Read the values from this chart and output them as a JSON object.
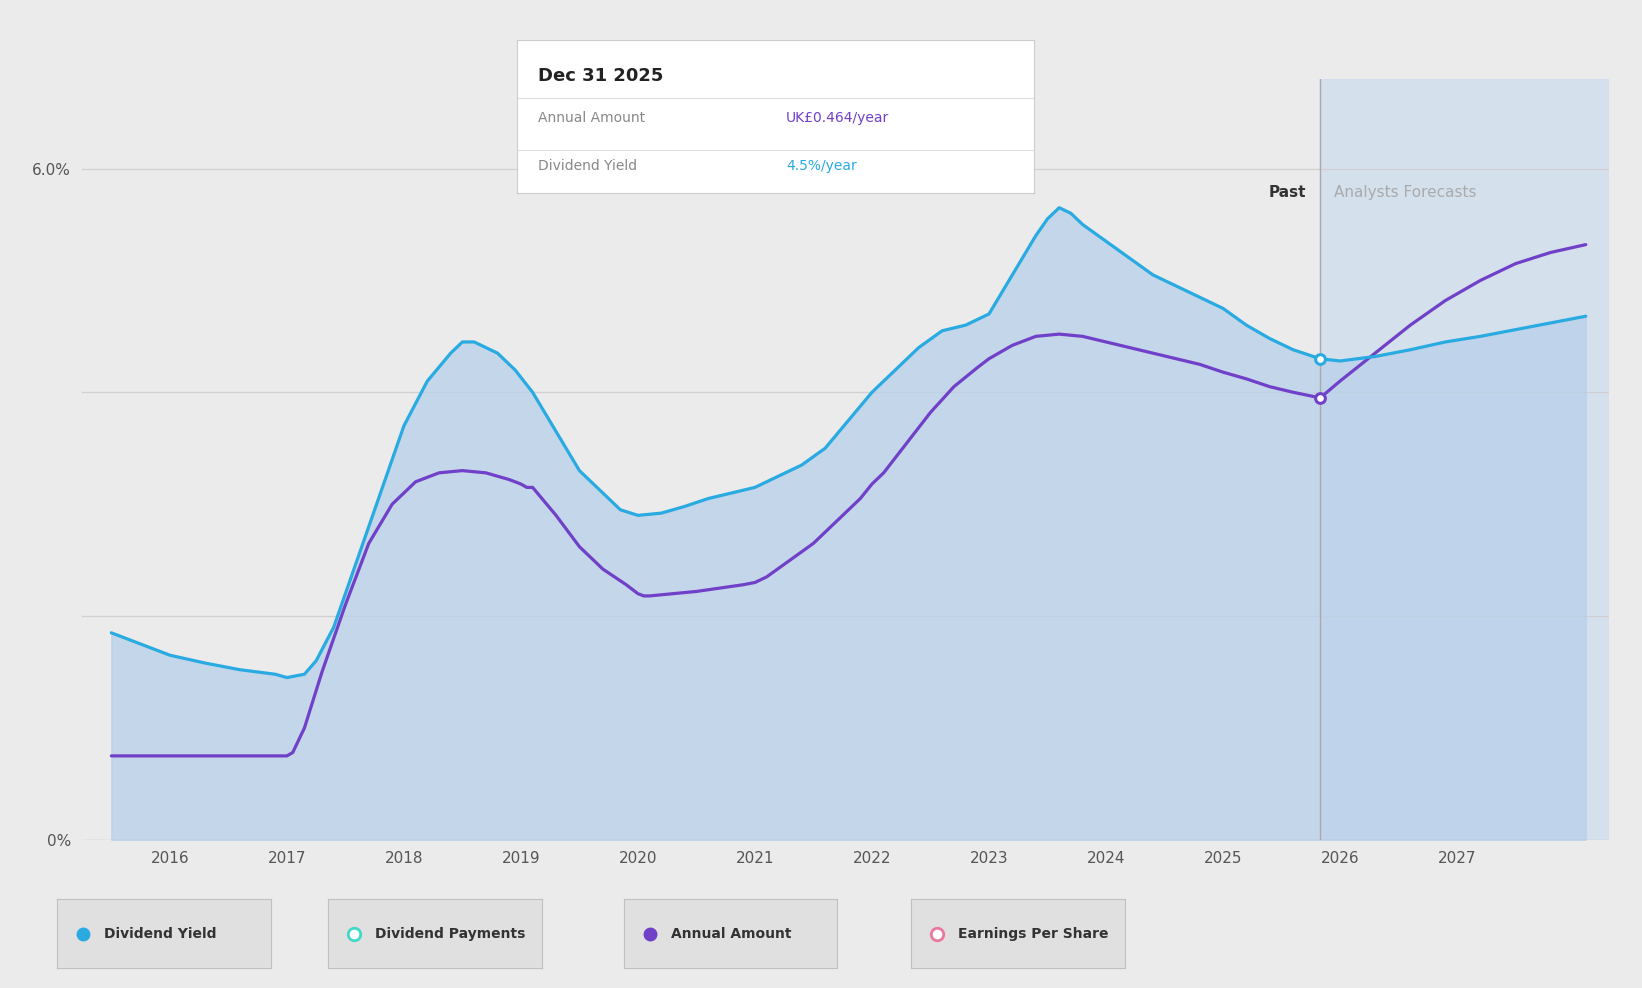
{
  "background_color": "#ebebeb",
  "plot_bg_color": "#ebebeb",
  "fill_color": "#b8d0ea",
  "fill_alpha": 0.75,
  "dividend_yield_color": "#29abe2",
  "annual_amount_color": "#7040c8",
  "past_line_x": 2025.83,
  "forecast_bg_color": "#cddcee",
  "ylim": [
    0,
    6.8
  ],
  "xlim": [
    2015.25,
    2028.3
  ],
  "xticks": [
    2016,
    2017,
    2018,
    2019,
    2020,
    2021,
    2022,
    2023,
    2024,
    2025,
    2026,
    2027
  ],
  "tooltip_title": "Dec 31 2025",
  "tooltip_annual_label": "Annual Amount",
  "tooltip_annual_value": "UK£0.464/year",
  "tooltip_annual_color": "#7040c8",
  "tooltip_yield_label": "Dividend Yield",
  "tooltip_yield_value": "4.5%/year",
  "tooltip_yield_color": "#29abe2",
  "past_label": "Past",
  "forecast_label": "Analysts Forecasts",
  "div_yield_x": [
    2015.5,
    2015.75,
    2016.0,
    2016.3,
    2016.6,
    2016.9,
    2017.0,
    2017.15,
    2017.25,
    2017.4,
    2017.6,
    2017.8,
    2018.0,
    2018.2,
    2018.4,
    2018.5,
    2018.6,
    2018.8,
    2018.95,
    2019.1,
    2019.3,
    2019.5,
    2019.7,
    2019.85,
    2020.0,
    2020.2,
    2020.4,
    2020.6,
    2020.8,
    2021.0,
    2021.2,
    2021.4,
    2021.6,
    2021.8,
    2022.0,
    2022.2,
    2022.4,
    2022.6,
    2022.8,
    2023.0,
    2023.2,
    2023.4,
    2023.5,
    2023.6,
    2023.7,
    2023.8,
    2024.0,
    2024.2,
    2024.4,
    2024.6,
    2024.8,
    2025.0,
    2025.2,
    2025.4,
    2025.6,
    2025.83,
    2026.0,
    2026.3,
    2026.6,
    2026.9,
    2027.2,
    2027.5,
    2027.8,
    2028.1
  ],
  "div_yield_y": [
    1.85,
    1.75,
    1.65,
    1.58,
    1.52,
    1.48,
    1.45,
    1.48,
    1.6,
    1.9,
    2.5,
    3.1,
    3.7,
    4.1,
    4.35,
    4.45,
    4.45,
    4.35,
    4.2,
    4.0,
    3.65,
    3.3,
    3.1,
    2.95,
    2.9,
    2.92,
    2.98,
    3.05,
    3.1,
    3.15,
    3.25,
    3.35,
    3.5,
    3.75,
    4.0,
    4.2,
    4.4,
    4.55,
    4.6,
    4.7,
    5.05,
    5.4,
    5.55,
    5.65,
    5.6,
    5.5,
    5.35,
    5.2,
    5.05,
    4.95,
    4.85,
    4.75,
    4.6,
    4.48,
    4.38,
    4.3,
    4.28,
    4.32,
    4.38,
    4.45,
    4.5,
    4.56,
    4.62,
    4.68
  ],
  "annual_amount_x": [
    2015.5,
    2015.75,
    2016.0,
    2016.3,
    2016.6,
    2016.9,
    2017.0,
    2017.05,
    2017.15,
    2017.3,
    2017.5,
    2017.7,
    2017.9,
    2018.1,
    2018.3,
    2018.5,
    2018.7,
    2018.9,
    2019.0,
    2019.05,
    2019.1,
    2019.3,
    2019.5,
    2019.7,
    2019.9,
    2020.0,
    2020.05,
    2020.1,
    2020.3,
    2020.5,
    2020.7,
    2020.9,
    2021.0,
    2021.1,
    2021.3,
    2021.5,
    2021.7,
    2021.9,
    2022.0,
    2022.1,
    2022.3,
    2022.5,
    2022.7,
    2022.9,
    2023.0,
    2023.2,
    2023.4,
    2023.6,
    2023.8,
    2024.0,
    2024.2,
    2024.4,
    2024.6,
    2024.8,
    2025.0,
    2025.2,
    2025.4,
    2025.6,
    2025.83,
    2026.0,
    2026.3,
    2026.6,
    2026.9,
    2027.2,
    2027.5,
    2027.8,
    2028.1
  ],
  "annual_amount_y": [
    0.75,
    0.75,
    0.75,
    0.75,
    0.75,
    0.75,
    0.75,
    0.78,
    1.0,
    1.5,
    2.1,
    2.65,
    3.0,
    3.2,
    3.28,
    3.3,
    3.28,
    3.22,
    3.18,
    3.15,
    3.15,
    2.9,
    2.62,
    2.42,
    2.28,
    2.2,
    2.18,
    2.18,
    2.2,
    2.22,
    2.25,
    2.28,
    2.3,
    2.35,
    2.5,
    2.65,
    2.85,
    3.05,
    3.18,
    3.28,
    3.55,
    3.82,
    4.05,
    4.22,
    4.3,
    4.42,
    4.5,
    4.52,
    4.5,
    4.45,
    4.4,
    4.35,
    4.3,
    4.25,
    4.18,
    4.12,
    4.05,
    4.0,
    3.95,
    4.1,
    4.35,
    4.6,
    4.82,
    5.0,
    5.15,
    5.25,
    5.32
  ],
  "dot_blue_x": 2025.83,
  "dot_blue_y": 4.3,
  "dot_purple_x": 2025.83,
  "dot_purple_y": 3.95,
  "gridline_color": "#d0d0d0",
  "legend_items": [
    {
      "label": "Dividend Yield",
      "color": "#29abe2",
      "filled": true
    },
    {
      "label": "Dividend Payments",
      "color": "#40d8c8",
      "filled": false
    },
    {
      "label": "Annual Amount",
      "color": "#7040c8",
      "filled": true
    },
    {
      "label": "Earnings Per Share",
      "color": "#e878a0",
      "filled": false
    }
  ]
}
